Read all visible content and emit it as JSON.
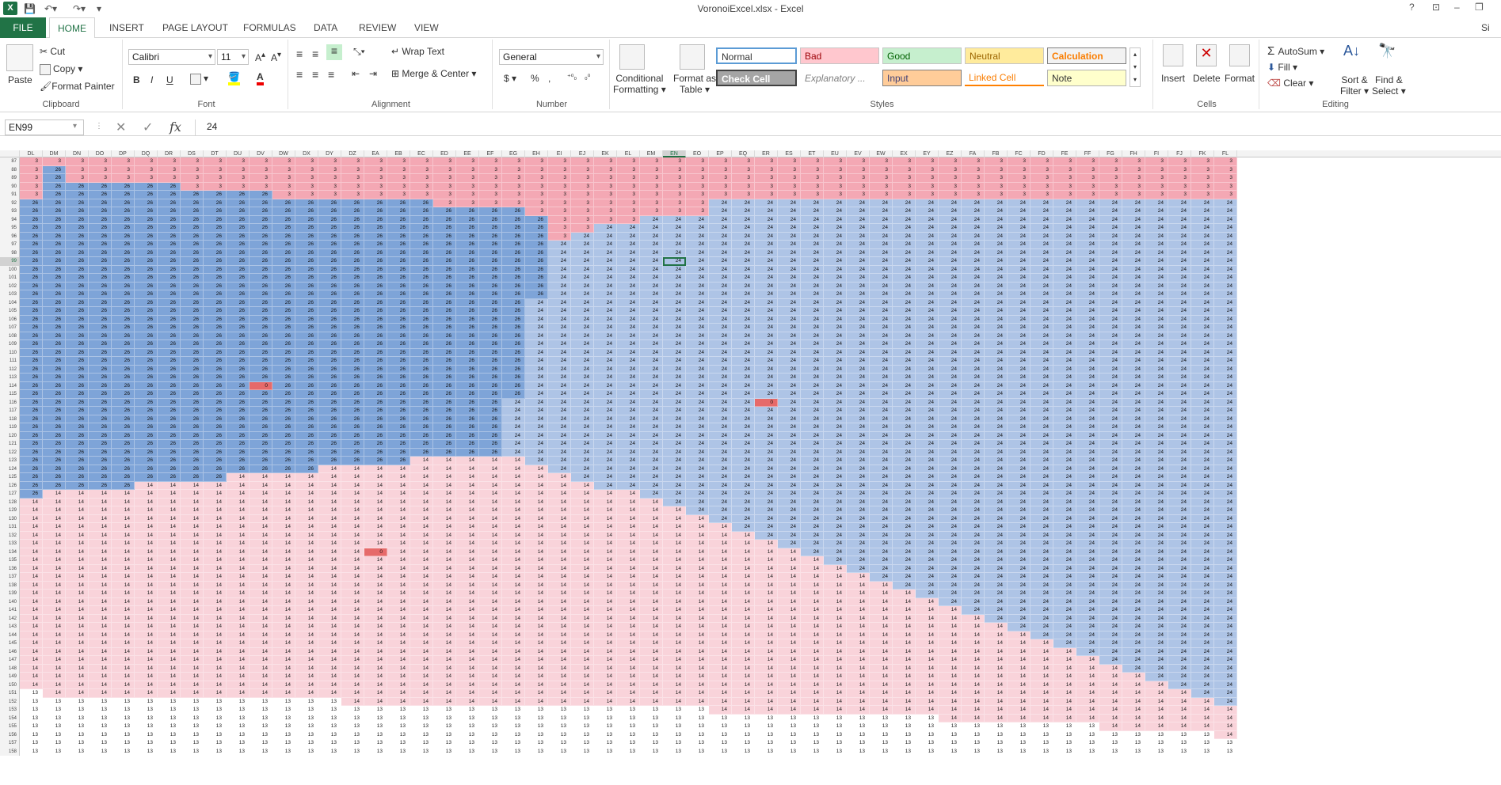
{
  "titlebar": {
    "title": "VoronoiExcel.xlsx - Excel",
    "icon": "excel-icon",
    "help": "?",
    "ribbon_opts": "⊡",
    "minimize": "–",
    "restore": "❐",
    "signin": "Si"
  },
  "tabs": [
    {
      "label": "FILE"
    },
    {
      "label": "HOME"
    },
    {
      "label": "INSERT"
    },
    {
      "label": "PAGE LAYOUT"
    },
    {
      "label": "FORMULAS"
    },
    {
      "label": "DATA"
    },
    {
      "label": "REVIEW"
    },
    {
      "label": "VIEW"
    }
  ],
  "clipboard": {
    "paste": "Paste",
    "cut": "Cut",
    "copy": "Copy",
    "format_painter": "Format Painter",
    "label": "Clipboard"
  },
  "font": {
    "name": "Calibri",
    "size": "11",
    "bold": "B",
    "italic": "I",
    "underline": "U",
    "label": "Font"
  },
  "alignment": {
    "wrap": "Wrap Text",
    "merge": "Merge & Center",
    "label": "Alignment"
  },
  "number": {
    "format": "General",
    "currency": "$",
    "percent": "%",
    "comma": ",",
    "label": "Number"
  },
  "styles": {
    "cond": "Conditional",
    "cond2": "Formatting",
    "fmt_table": "Format as",
    "fmt_table2": "Table",
    "items": [
      "Normal",
      "Bad",
      "Good",
      "Neutral",
      "Calculation",
      "Check Cell",
      "Explanatory ...",
      "Input",
      "Linked Cell",
      "Note"
    ],
    "label": "Styles"
  },
  "cells_group": {
    "insert": "Insert",
    "delete": "Delete",
    "format": "Format",
    "label": "Cells"
  },
  "editing": {
    "autosum": "AutoSum",
    "fill": "Fill",
    "clear": "Clear",
    "sort": "Sort &",
    "sort2": "Filter",
    "find": "Find &",
    "find2": "Select",
    "label": "Editing"
  },
  "formula_bar": {
    "name_box": "EN99",
    "fx": "fx",
    "value": "24"
  },
  "colors": {
    "v3": "#f4a8b4",
    "v26": "#7ea4d8",
    "v24": "#aec4e6",
    "v14": "#f9d3da",
    "v13": "#ffffff",
    "v0": "#e66a6a",
    "accent": "#217346"
  },
  "columns": [
    "DL",
    "DM",
    "DN",
    "DO",
    "DP",
    "DQ",
    "DR",
    "DS",
    "DT",
    "DU",
    "DV",
    "DW",
    "DX",
    "DY",
    "DZ",
    "EA",
    "EB",
    "EC",
    "ED",
    "EE",
    "EF",
    "EG",
    "EH",
    "EI",
    "EJ",
    "EK",
    "EL",
    "EM",
    "EN",
    "EO",
    "EP",
    "EQ",
    "ER",
    "ES",
    "ET",
    "EU",
    "EV",
    "EW",
    "EX",
    "EY",
    "EZ",
    "FA",
    "FB",
    "FC",
    "FD",
    "FE",
    "FF",
    "FG",
    "FH",
    "FI",
    "FJ",
    "FK",
    "FL"
  ],
  "selected_column": "EN",
  "rows": [
    {
      "n": "87",
      "v": "3:53"
    },
    {
      "n": "88",
      "v": "3:1,26:1,3:51"
    },
    {
      "n": "89",
      "v": "3:1,26:1,3:51"
    },
    {
      "n": "90",
      "v": "3:1,26:6,3:46"
    },
    {
      "n": "91",
      "v": "3:1,26:10,3:42"
    },
    {
      "n": "92",
      "v": "26:18,3:12,24:23"
    },
    {
      "n": "93",
      "v": "26:22,3:8,24:23"
    },
    {
      "n": "94",
      "v": "26:23,3:4,24:26"
    },
    {
      "n": "95",
      "v": "26:23,3:2,24:28"
    },
    {
      "n": "96",
      "v": "26:23,3:1,24:29"
    },
    {
      "n": "97",
      "v": "26:23,24:30"
    },
    {
      "n": "98",
      "v": "26:23,24:30"
    },
    {
      "n": "99",
      "v": "26:23,24:30"
    },
    {
      "n": "100",
      "v": "26:23,24:30"
    },
    {
      "n": "101",
      "v": "26:23,24:30"
    },
    {
      "n": "102",
      "v": "26:23,24:30"
    },
    {
      "n": "103",
      "v": "26:23,24:30"
    },
    {
      "n": "104",
      "v": "26:22,24:31"
    },
    {
      "n": "105",
      "v": "26:22,24:31"
    },
    {
      "n": "106",
      "v": "26:22,24:31"
    },
    {
      "n": "107",
      "v": "26:22,24:31"
    },
    {
      "n": "108",
      "v": "26:22,24:31"
    },
    {
      "n": "109",
      "v": "26:22,24:31"
    },
    {
      "n": "110",
      "v": "26:22,24:31"
    },
    {
      "n": "111",
      "v": "26:22,24:31"
    },
    {
      "n": "112",
      "v": "26:22,24:31"
    },
    {
      "n": "113",
      "v": "26:22,24:31"
    },
    {
      "n": "114",
      "v": "26:10,0:1,26:11,24:31"
    },
    {
      "n": "115",
      "v": "26:22,24:31"
    },
    {
      "n": "116",
      "v": "26:21,24:11,0:1,24:20"
    },
    {
      "n": "117",
      "v": "26:21,24:32"
    },
    {
      "n": "118",
      "v": "26:21,24:32"
    },
    {
      "n": "119",
      "v": "26:21,24:32"
    },
    {
      "n": "120",
      "v": "26:21,24:32"
    },
    {
      "n": "121",
      "v": "26:21,24:32"
    },
    {
      "n": "122",
      "v": "26:21,24:32"
    },
    {
      "n": "123",
      "v": "26:17,14:5,24:31"
    },
    {
      "n": "124",
      "v": "26:13,14:10,24:30"
    },
    {
      "n": "125",
      "v": "26:9,14:15,24:29"
    },
    {
      "n": "126",
      "v": "26:5,14:20,24:28"
    },
    {
      "n": "127",
      "v": "26:1,14:26,24:26"
    },
    {
      "n": "128",
      "v": "14:28,24:25"
    },
    {
      "n": "129",
      "v": "14:29,24:24"
    },
    {
      "n": "130",
      "v": "14:30,24:23"
    },
    {
      "n": "131",
      "v": "14:31,24:22"
    },
    {
      "n": "132",
      "v": "14:32,24:21"
    },
    {
      "n": "133",
      "v": "14:33,24:20"
    },
    {
      "n": "134",
      "v": "14:15,0:1,14:18,24:19"
    },
    {
      "n": "135",
      "v": "14:35,24:18"
    },
    {
      "n": "136",
      "v": "14:36,24:17"
    },
    {
      "n": "137",
      "v": "14:37,24:16"
    },
    {
      "n": "138",
      "v": "14:38,24:15"
    },
    {
      "n": "139",
      "v": "14:39,24:14"
    },
    {
      "n": "140",
      "v": "14:40,24:13"
    },
    {
      "n": "141",
      "v": "14:41,24:12"
    },
    {
      "n": "142",
      "v": "14:42,24:11"
    },
    {
      "n": "143",
      "v": "14:43,24:10"
    },
    {
      "n": "144",
      "v": "14:44,24:9"
    },
    {
      "n": "145",
      "v": "14:45,24:8"
    },
    {
      "n": "146",
      "v": "14:46,24:7"
    },
    {
      "n": "147",
      "v": "14:47,24:6"
    },
    {
      "n": "148",
      "v": "14:48,24:5"
    },
    {
      "n": "149",
      "v": "14:49,24:4"
    },
    {
      "n": "150",
      "v": "14:50,24:3"
    },
    {
      "n": "151",
      "v": "13:1,14:50,24:2"
    },
    {
      "n": "152",
      "v": "13:14,14:38,24:1"
    },
    {
      "n": "153",
      "v": "13:30,14:23"
    },
    {
      "n": "154",
      "v": "13:40,14:13"
    },
    {
      "n": "155",
      "v": "13:47,14:6"
    },
    {
      "n": "156",
      "v": "13:52,14:1"
    },
    {
      "n": "157",
      "v": "13:53"
    },
    {
      "n": "158",
      "v": "13:53"
    }
  ],
  "selected_cell": {
    "row": "99",
    "col": "EN"
  }
}
